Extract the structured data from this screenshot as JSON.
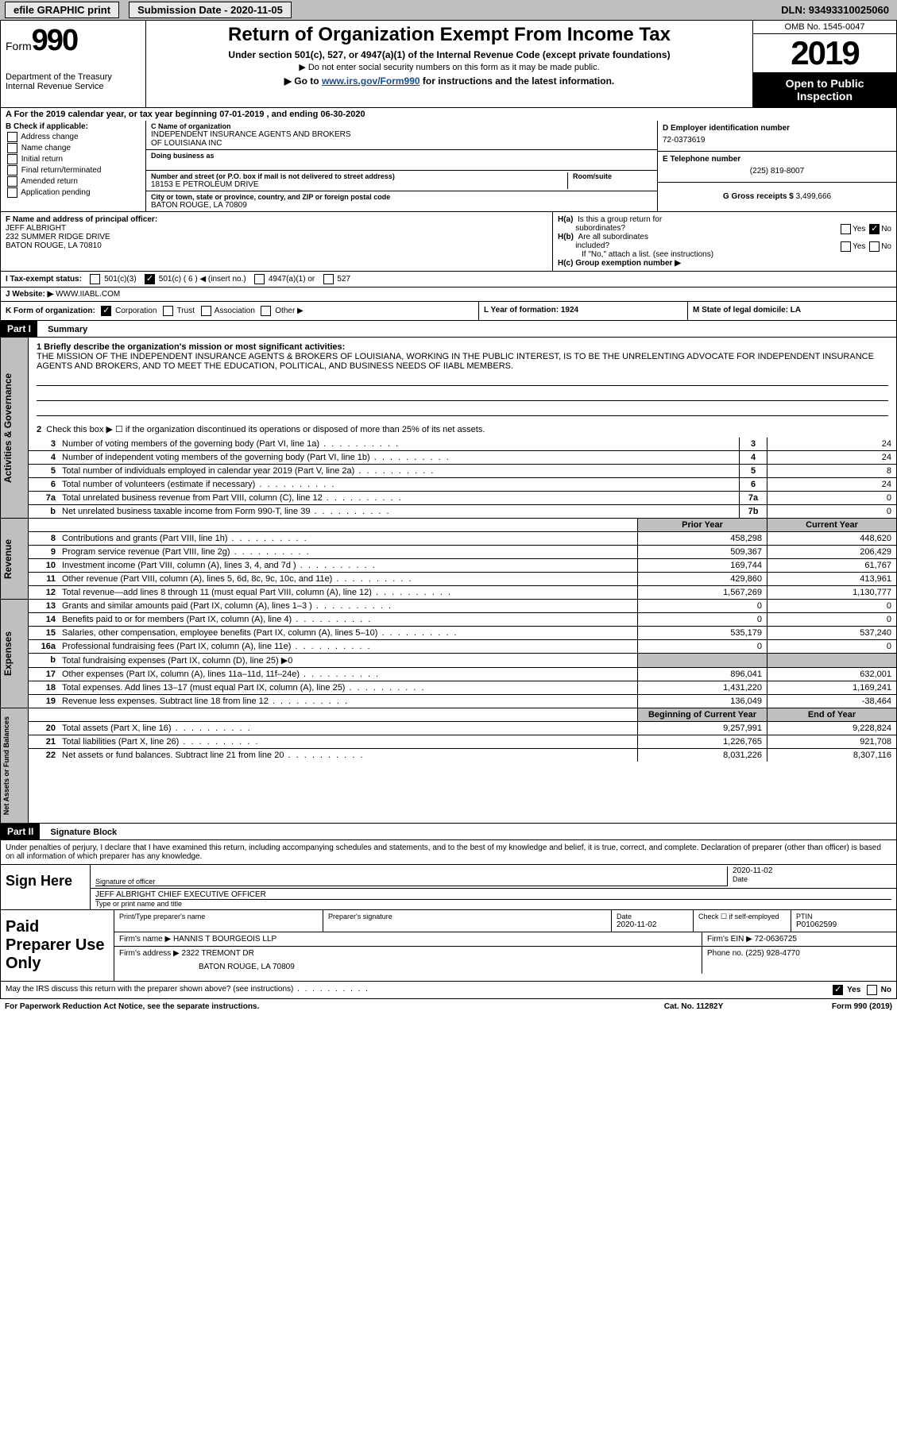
{
  "topbar": {
    "efile": "efile GRAPHIC print",
    "submission_label": "Submission Date - 2020-11-05",
    "dln": "DLN: 93493310025060"
  },
  "form_header": {
    "form_word": "Form",
    "form_num": "990",
    "dept1": "Department of the Treasury",
    "dept2": "Internal Revenue Service",
    "title": "Return of Organization Exempt From Income Tax",
    "subtitle1": "Under section 501(c), 527, or 4947(a)(1) of the Internal Revenue Code (except private foundations)",
    "subtitle2": "▶ Do not enter social security numbers on this form as it may be made public.",
    "subtitle3_pre": "▶ Go to ",
    "subtitle3_link": "www.irs.gov/Form990",
    "subtitle3_post": " for instructions and the latest information.",
    "omb": "OMB No. 1545-0047",
    "year": "2019",
    "open": "Open to Public Inspection"
  },
  "line_a": "A For the 2019 calendar year, or tax year beginning 07-01-2019   , and ending 06-30-2020",
  "box_b": {
    "header": "B Check if applicable:",
    "addr": "Address change",
    "name": "Name change",
    "init": "Initial return",
    "final": "Final return/terminated",
    "amend": "Amended return",
    "app": "Application pending"
  },
  "box_c": {
    "hdr_name": "C Name of organization",
    "org1": "INDEPENDENT INSURANCE AGENTS AND BROKERS",
    "org2": "OF LOUISIANA INC",
    "dba_hdr": "Doing business as",
    "addr_hdr": "Number and street (or P.O. box if mail is not delivered to street address)",
    "room_hdr": "Room/suite",
    "addr": "18153 E PETROLEUM DRIVE",
    "city_hdr": "City or town, state or province, country, and ZIP or foreign postal code",
    "city": "BATON ROUGE, LA  70809"
  },
  "box_d": {
    "hdr": "D Employer identification number",
    "ein": "72-0373619",
    "tel_hdr": "E Telephone number",
    "tel": "(225) 819-8007",
    "gross_hdr": "G Gross receipts $ ",
    "gross": "3,499,666"
  },
  "box_f": {
    "hdr": "F Name and address of principal officer:",
    "name": "JEFF ALBRIGHT",
    "addr1": "232 SUMMER RIDGE DRIVE",
    "addr2": "BATON ROUGE, LA  70810"
  },
  "box_h": {
    "ha": "H(a)  Is this a group return for subordinates?",
    "hb": "H(b)  Are all subordinates included?",
    "hb_note": "If \"No,\" attach a list. (see instructions)",
    "hc": "H(c)  Group exemption number ▶",
    "yes": "Yes",
    "no": "No"
  },
  "line_i": {
    "label": "I   Tax-exempt status:",
    "o1": "501(c)(3)",
    "o2": "501(c) ( 6 ) ◀ (insert no.)",
    "o3": "4947(a)(1) or",
    "o4": "527"
  },
  "line_j": {
    "label": "J   Website: ▶ ",
    "val": "WWW.IIABL.COM"
  },
  "line_k": {
    "label": "K Form of organization:",
    "corp": "Corporation",
    "trust": "Trust",
    "assoc": "Association",
    "other": "Other ▶",
    "l_year": "L Year of formation: 1924",
    "m_state": "M State of legal domicile: LA"
  },
  "part1": {
    "hdr": "Part I",
    "title": "Summary",
    "l1_label": "1  Briefly describe the organization's mission or most significant activities:",
    "l1_text": "THE MISSION OF THE INDEPENDENT INSURANCE AGENTS & BROKERS OF LOUISIANA, WORKING IN THE PUBLIC INTEREST, IS TO BE THE UNRELENTING ADVOCATE FOR INDEPENDENT INSURANCE AGENTS AND BROKERS, AND TO MEET THE EDUCATION, POLITICAL, AND BUSINESS NEEDS OF IIABL MEMBERS.",
    "l2": "Check this box ▶ ☐  if the organization discontinued its operations or disposed of more than 25% of its net assets.",
    "lines_ag": [
      {
        "n": "3",
        "t": "Number of voting members of the governing body (Part VI, line 1a)",
        "b": "3",
        "v": "24"
      },
      {
        "n": "4",
        "t": "Number of independent voting members of the governing body (Part VI, line 1b)",
        "b": "4",
        "v": "24"
      },
      {
        "n": "5",
        "t": "Total number of individuals employed in calendar year 2019 (Part V, line 2a)",
        "b": "5",
        "v": "8"
      },
      {
        "n": "6",
        "t": "Total number of volunteers (estimate if necessary)",
        "b": "6",
        "v": "24"
      },
      {
        "n": "7a",
        "t": "Total unrelated business revenue from Part VIII, column (C), line 12",
        "b": "7a",
        "v": "0"
      },
      {
        "n": "b",
        "t": "Net unrelated business taxable income from Form 990-T, line 39",
        "b": "7b",
        "v": "0"
      }
    ],
    "col_prior": "Prior Year",
    "col_current": "Current Year",
    "lines_rev": [
      {
        "n": "8",
        "t": "Contributions and grants (Part VIII, line 1h)",
        "p": "458,298",
        "c": "448,620"
      },
      {
        "n": "9",
        "t": "Program service revenue (Part VIII, line 2g)",
        "p": "509,367",
        "c": "206,429"
      },
      {
        "n": "10",
        "t": "Investment income (Part VIII, column (A), lines 3, 4, and 7d )",
        "p": "169,744",
        "c": "61,767"
      },
      {
        "n": "11",
        "t": "Other revenue (Part VIII, column (A), lines 5, 6d, 8c, 9c, 10c, and 11e)",
        "p": "429,860",
        "c": "413,961"
      },
      {
        "n": "12",
        "t": "Total revenue—add lines 8 through 11 (must equal Part VIII, column (A), line 12)",
        "p": "1,567,269",
        "c": "1,130,777"
      }
    ],
    "lines_exp": [
      {
        "n": "13",
        "t": "Grants and similar amounts paid (Part IX, column (A), lines 1–3 )",
        "p": "0",
        "c": "0"
      },
      {
        "n": "14",
        "t": "Benefits paid to or for members (Part IX, column (A), line 4)",
        "p": "0",
        "c": "0"
      },
      {
        "n": "15",
        "t": "Salaries, other compensation, employee benefits (Part IX, column (A), lines 5–10)",
        "p": "535,179",
        "c": "537,240"
      },
      {
        "n": "16a",
        "t": "Professional fundraising fees (Part IX, column (A), line 11e)",
        "p": "0",
        "c": "0"
      },
      {
        "n": "b",
        "t": "Total fundraising expenses (Part IX, column (D), line 25) ▶0",
        "p": "",
        "c": "",
        "shade": true
      },
      {
        "n": "17",
        "t": "Other expenses (Part IX, column (A), lines 11a–11d, 11f–24e)",
        "p": "896,041",
        "c": "632,001"
      },
      {
        "n": "18",
        "t": "Total expenses. Add lines 13–17 (must equal Part IX, column (A), line 25)",
        "p": "1,431,220",
        "c": "1,169,241"
      },
      {
        "n": "19",
        "t": "Revenue less expenses. Subtract line 18 from line 12",
        "p": "136,049",
        "c": "-38,464"
      }
    ],
    "col_begin": "Beginning of Current Year",
    "col_end": "End of Year",
    "lines_na": [
      {
        "n": "20",
        "t": "Total assets (Part X, line 16)",
        "p": "9,257,991",
        "c": "9,228,824"
      },
      {
        "n": "21",
        "t": "Total liabilities (Part X, line 26)",
        "p": "1,226,765",
        "c": "921,708"
      },
      {
        "n": "22",
        "t": "Net assets or fund balances. Subtract line 21 from line 20",
        "p": "8,031,226",
        "c": "8,307,116"
      }
    ],
    "vlabel_ag": "Activities & Governance",
    "vlabel_rev": "Revenue",
    "vlabel_exp": "Expenses",
    "vlabel_na": "Net Assets or Fund Balances"
  },
  "part2": {
    "hdr": "Part II",
    "title": "Signature Block",
    "decl": "Under penalties of perjury, I declare that I have examined this return, including accompanying schedules and statements, and to the best of my knowledge and belief, it is true, correct, and complete. Declaration of preparer (other than officer) is based on all information of which preparer has any knowledge.",
    "sign_here": "Sign Here",
    "sig_officer": "Signature of officer",
    "sig_date": "2020-11-02",
    "date_lbl": "Date",
    "name_title": "JEFF ALBRIGHT CHIEF EXECUTIVE OFFICER",
    "name_lbl": "Type or print name and title",
    "paid": "Paid Preparer Use Only",
    "prep_name_hdr": "Print/Type preparer's name",
    "prep_sig_hdr": "Preparer's signature",
    "prep_date_hdr": "Date",
    "prep_date": "2020-11-02",
    "prep_check": "Check ☐ if self-employed",
    "ptin_hdr": "PTIN",
    "ptin": "P01062599",
    "firm_name_hdr": "Firm's name    ▶ ",
    "firm_name": "HANNIS T BOURGEOIS LLP",
    "firm_ein_hdr": "Firm's EIN ▶ ",
    "firm_ein": "72-0636725",
    "firm_addr_hdr": "Firm's address ▶ ",
    "firm_addr1": "2322 TREMONT DR",
    "firm_addr2": "BATON ROUGE, LA  70809",
    "firm_phone_hdr": "Phone no. ",
    "firm_phone": "(225) 928-4770"
  },
  "footer": {
    "discuss": "May the IRS discuss this return with the preparer shown above? (see instructions)",
    "yes": "Yes",
    "no": "No",
    "paperwork": "For Paperwork Reduction Act Notice, see the separate instructions.",
    "cat": "Cat. No. 11282Y",
    "form": "Form 990 (2019)"
  }
}
